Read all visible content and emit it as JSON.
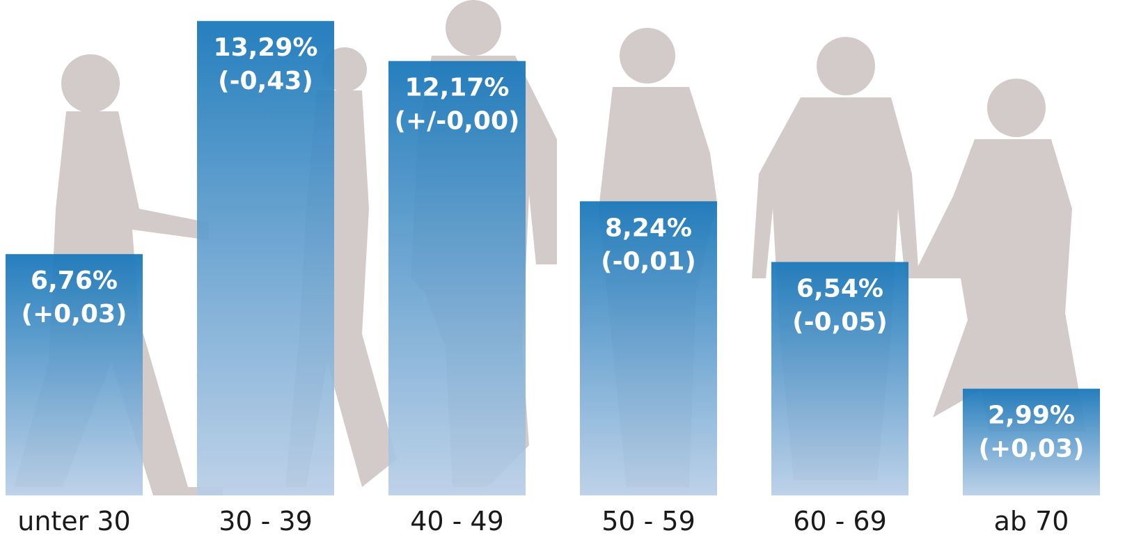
{
  "chart_data": {
    "type": "bar",
    "categories": [
      "unter 30",
      "30 - 39",
      "40 - 49",
      "50 - 59",
      "60 - 69",
      "ab 70"
    ],
    "values": [
      6.76,
      13.29,
      12.17,
      8.24,
      6.54,
      2.99
    ],
    "value_labels": [
      "6,76%",
      "13,29%",
      "12,17%",
      "8,24%",
      "6,54%",
      "2,99%"
    ],
    "changes": [
      0.03,
      -0.43,
      0,
      -0.01,
      -0.05,
      0.03
    ],
    "change_labels": [
      "(+0,03)",
      "(-0,43)",
      "(+/-0,00)",
      "(-0,01)",
      "(-0,05)",
      "(+0,03)"
    ],
    "color": "#1a78ba"
  }
}
